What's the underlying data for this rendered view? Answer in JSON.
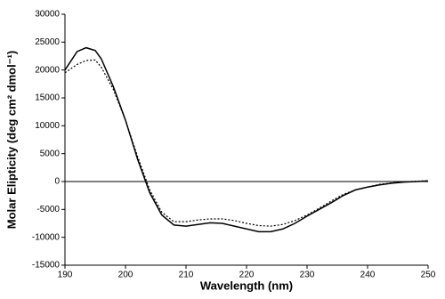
{
  "chart_data": {
    "type": "line",
    "x_label": "Wavelength (nm)",
    "y_label": "Molar Elipticity (deg cm² dmol⁻¹)",
    "x": [
      190,
      192,
      193.5,
      195,
      196,
      198,
      200,
      202,
      204,
      206,
      208,
      210,
      212,
      214,
      216,
      218,
      220,
      222,
      224,
      226,
      228,
      230,
      232,
      234,
      236,
      238,
      240,
      242,
      244,
      246,
      248,
      250
    ],
    "series": [
      {
        "color": "#000000",
        "dash": "solid",
        "values": [
          20000,
          23300,
          24000,
          23500,
          22000,
          17000,
          11000,
          4000,
          -2000,
          -6000,
          -7800,
          -8000,
          -7700,
          -7400,
          -7500,
          -8000,
          -8500,
          -9000,
          -9000,
          -8500,
          -7500,
          -6200,
          -5000,
          -3800,
          -2500,
          -1500,
          -1000,
          -600,
          -300,
          -100,
          0,
          100
        ]
      },
      {
        "color": "#000000",
        "dash": "dotted",
        "values": [
          19500,
          21000,
          21700,
          21800,
          20500,
          16500,
          11000,
          4500,
          -1500,
          -5500,
          -7200,
          -7200,
          -6900,
          -6700,
          -6700,
          -7000,
          -7500,
          -7900,
          -8000,
          -7700,
          -7000,
          -6000,
          -4800,
          -3500,
          -2300,
          -1500,
          -1000,
          -500,
          -250,
          -50,
          50,
          150
        ]
      }
    ],
    "xlim": [
      190,
      250
    ],
    "xticks": [
      190,
      200,
      210,
      220,
      230,
      240,
      250
    ],
    "ylim": [
      -15000,
      30000
    ],
    "yticks": [
      -15000,
      -10000,
      -5000,
      0,
      5000,
      10000,
      15000,
      20000,
      25000,
      30000
    ]
  }
}
